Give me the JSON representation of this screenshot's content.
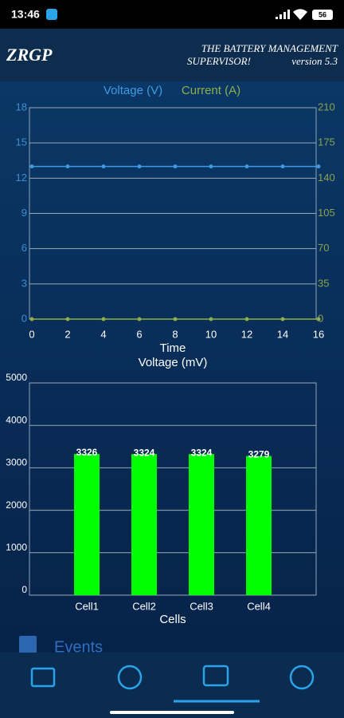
{
  "status_bar": {
    "time": "13:46",
    "battery": "56"
  },
  "header": {
    "logo": "ZRGP",
    "title": "THE BATTERY MANAGEMENT SUPERVISOR!",
    "version": "version 5.3"
  },
  "chart_data": [
    {
      "type": "line",
      "x": [
        0,
        2,
        4,
        6,
        8,
        10,
        12,
        14,
        16
      ],
      "xlim": [
        0,
        16
      ],
      "xticks": [
        0,
        2,
        4,
        6,
        8,
        10,
        12,
        14,
        16
      ],
      "xlabel": "Time",
      "ylim": [
        0,
        18
      ],
      "yticks": [
        0,
        3,
        6,
        9,
        12,
        15,
        18
      ],
      "y_tick_color": "#3c8fd0",
      "y2lim": [
        0,
        210
      ],
      "y2ticks": [
        0,
        35,
        70,
        105,
        140,
        175,
        210
      ],
      "y2_tick_color": "#8aa34a",
      "grid": true,
      "series": [
        {
          "name": "Voltage (V)",
          "color": "#3d9be0",
          "values": [
            13,
            13,
            13,
            13,
            13,
            13,
            13,
            13,
            13
          ]
        },
        {
          "name": "Current (A)",
          "color": "#8fae4a",
          "axis": "y2",
          "values": [
            0,
            0,
            0,
            0,
            0,
            0,
            0,
            0,
            0
          ]
        }
      ]
    },
    {
      "type": "bar",
      "title": "Voltage (mV)",
      "categories": [
        "Cell1",
        "Cell2",
        "Cell3",
        "Cell4"
      ],
      "values": [
        3326,
        3324,
        3324,
        3279
      ],
      "color": "#00ff00",
      "ylim": [
        0,
        5000
      ],
      "yticks": [
        0,
        1000,
        2000,
        3000,
        4000,
        5000
      ],
      "xlabel": "Cells",
      "grid": true
    }
  ],
  "menu": {
    "events": "Events"
  }
}
